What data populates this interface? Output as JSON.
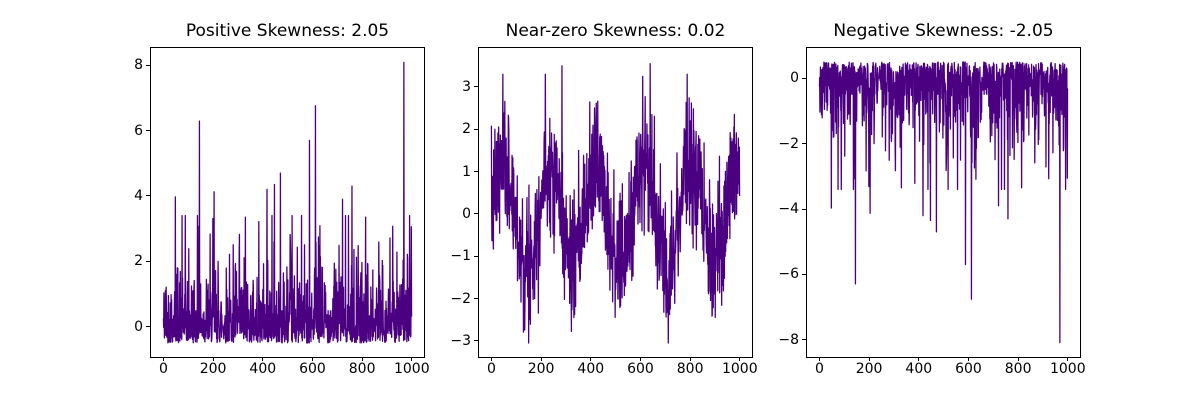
{
  "figure": {
    "background": "#ffffff",
    "text_color": "#000000",
    "grid": false,
    "legend": false
  },
  "chart_data": [
    {
      "type": "line",
      "title": "Positive Skewness: 2.05",
      "skewness_label": "2.05",
      "color": "#4B0082",
      "line_width": 1.3,
      "n_points": 1000,
      "xlim": [
        -50,
        1049
      ],
      "ylim": [
        -0.93,
        8.53
      ],
      "xticks": [
        {
          "v": 0,
          "label": "0"
        },
        {
          "v": 200,
          "label": "200"
        },
        {
          "v": 400,
          "label": "400"
        },
        {
          "v": 600,
          "label": "600"
        },
        {
          "v": 800,
          "label": "800"
        },
        {
          "v": 1000,
          "label": "1000"
        }
      ],
      "yticks": [
        {
          "v": 0,
          "label": "0"
        },
        {
          "v": 2,
          "label": "2"
        },
        {
          "v": 4,
          "label": "4"
        },
        {
          "v": 6,
          "label": "6"
        },
        {
          "v": 8,
          "label": "8"
        }
      ],
      "generator": {
        "kind": "exponential",
        "seed": 42,
        "scale": 0.8,
        "offset": -0.5,
        "clip_max": 3.4
      },
      "notable_points": [
        [
          48,
          3.97
        ],
        [
          145,
          6.29
        ],
        [
          204,
          4.13
        ],
        [
          330,
          3.35
        ],
        [
          417,
          4.2
        ],
        [
          447,
          4.35
        ],
        [
          471,
          4.7
        ],
        [
          588,
          5.7
        ],
        [
          612,
          6.76
        ],
        [
          721,
          3.9
        ],
        [
          759,
          4.3
        ],
        [
          968,
          8.09
        ]
      ]
    },
    {
      "type": "line",
      "title": "Near-zero Skewness: 0.02",
      "skewness_label": "0.02",
      "color": "#4B0082",
      "line_width": 1.3,
      "n_points": 1000,
      "xlim": [
        -50,
        1049
      ],
      "ylim": [
        -3.38,
        3.92
      ],
      "xticks": [
        {
          "v": 0,
          "label": "0"
        },
        {
          "v": 200,
          "label": "200"
        },
        {
          "v": 400,
          "label": "400"
        },
        {
          "v": 600,
          "label": "600"
        },
        {
          "v": 800,
          "label": "800"
        },
        {
          "v": 1000,
          "label": "1000"
        }
      ],
      "yticks": [
        {
          "v": -3,
          "label": "−3"
        },
        {
          "v": -2,
          "label": "−2"
        },
        {
          "v": -1,
          "label": "−1"
        },
        {
          "v": 0,
          "label": "0"
        },
        {
          "v": 1,
          "label": "1"
        },
        {
          "v": 2,
          "label": "2"
        },
        {
          "v": 3,
          "label": "3"
        }
      ],
      "generator": {
        "kind": "sine_noise",
        "seed": 7,
        "amplitude": 1.2,
        "period": 30,
        "sigma": 0.75,
        "clip": [
          -3.05,
          3.3
        ]
      },
      "notable_points": [
        [
          150,
          -3.05
        ],
        [
          284,
          3.5
        ],
        [
          639,
          3.55
        ],
        [
          788,
          3.3
        ]
      ]
    },
    {
      "type": "line",
      "title": "Negative Skewness: -2.05",
      "skewness_label": "-2.05",
      "color": "#4B0082",
      "line_width": 1.3,
      "n_points": 1000,
      "xlim": [
        -50,
        1049
      ],
      "ylim": [
        -8.53,
        0.93
      ],
      "xticks": [
        {
          "v": 0,
          "label": "0"
        },
        {
          "v": 200,
          "label": "200"
        },
        {
          "v": 400,
          "label": "400"
        },
        {
          "v": 600,
          "label": "600"
        },
        {
          "v": 800,
          "label": "800"
        },
        {
          "v": 1000,
          "label": "1000"
        }
      ],
      "yticks": [
        {
          "v": -8,
          "label": "−8"
        },
        {
          "v": -6,
          "label": "−6"
        },
        {
          "v": -4,
          "label": "−4"
        },
        {
          "v": -2,
          "label": "−2"
        },
        {
          "v": 0,
          "label": "0"
        }
      ],
      "generator": {
        "kind": "mirror",
        "of": 0
      },
      "notable_points": []
    }
  ]
}
